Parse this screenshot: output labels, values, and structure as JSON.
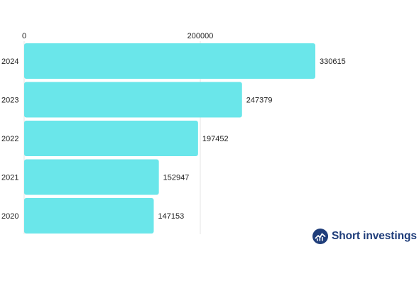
{
  "chart_data": {
    "type": "bar",
    "orientation": "horizontal",
    "categories": [
      "2024",
      "2023",
      "2022",
      "2021",
      "2020"
    ],
    "values": [
      330615,
      247379,
      197452,
      152947,
      147153
    ],
    "xlim": [
      0,
      330615
    ],
    "x_ticks": [
      0,
      200000
    ],
    "x_tick_labels": [
      "0",
      "200000"
    ],
    "x_axis_position": "top",
    "grid": true,
    "bar_color": "#6ae6ea",
    "data_labels": true
  },
  "watermark": {
    "text": "Short investings",
    "color": "#1f3d7a"
  }
}
